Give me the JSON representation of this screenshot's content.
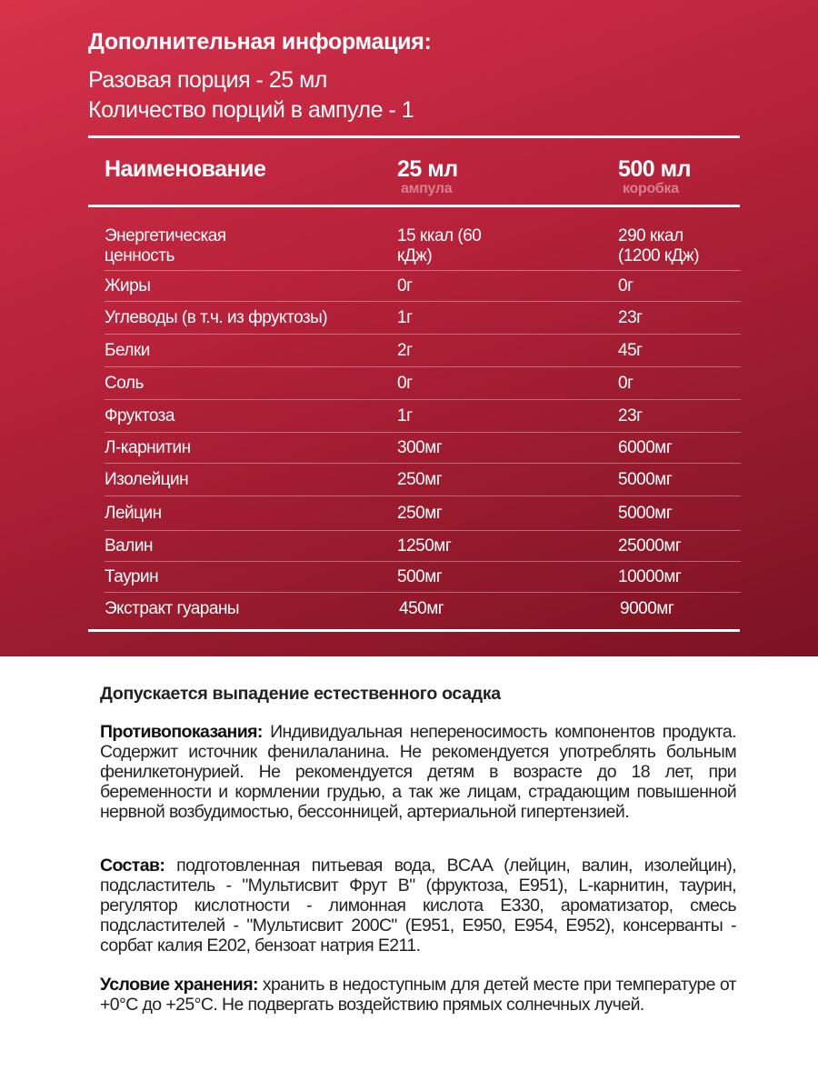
{
  "info": {
    "title": "Дополнительная информация:",
    "serving": "Разовая порция - 25 мл",
    "servings_count": "Количество порций в ампуле - 1"
  },
  "table": {
    "headers": {
      "name": "Наименование",
      "col1": "25 мл",
      "col1_sub": "ампула",
      "col2": "500 мл",
      "col2_sub": "коробка"
    },
    "rows": [
      {
        "name": "Энергетическая ценность",
        "v1": "15 ккал (60 кДж)",
        "v2": "290 ккал (1200 кДж)"
      },
      {
        "name": "Жиры",
        "v1": "0г",
        "v2": "0г"
      },
      {
        "name": "Углеводы (в т.ч. из фруктозы)",
        "v1": "1г",
        "v2": "23г"
      },
      {
        "name": "Белки",
        "v1": "2г",
        "v2": "45г"
      },
      {
        "name": "Соль",
        "v1": "0г",
        "v2": "0г"
      },
      {
        "name": "Фруктоза",
        "v1": "1г",
        "v2": "23г"
      },
      {
        "name": "Л-карнитин",
        "v1": "300мг",
        "v2": "6000мг"
      },
      {
        "name": "Изолейцин",
        "v1": "250мг",
        "v2": "5000мг"
      },
      {
        "name": "Лейцин",
        "v1": "250мг",
        "v2": "5000мг"
      },
      {
        "name": "Валин",
        "v1": "1250мг",
        "v2": "25000мг"
      },
      {
        "name": "Таурин",
        "v1": "500мг",
        "v2": "10000мг"
      },
      {
        "name": "Экстракт гуараны",
        "v1": "450мг",
        "v2": "9000мг"
      }
    ]
  },
  "notes": {
    "sediment": "Допускается выпадение естественного осадка",
    "contra_label": "Противопоказания:",
    "contra_text": " Индивидуальная непереносимость компонентов продукта. Содержит источник фенилаланина. Не рекомендуется употреблять больным фенилкетонурией. Не рекомендуется детям в возрасте до 18 лет, при беременности и кормлении грудью, а так же лицам, страдающим повышенной нервной возбудимостью, бессонницей, артериальной гипертензией.",
    "composition_label": "Состав:",
    "composition_text": " подготовленная питьевая вода, BCAA (лейцин, валин, изолейцин), подсластитель - \"Мультисвит Фрут B\" (фруктоза, E951), L-карнитин, таурин, регулятор кислотности - лимонная кислота E330, ароматизатор, смесь подсластителей - \"Мультисвит 200С\" (E951, E950, E954, E952), консерванты - сорбат калия E202, бензоат натрия E211.",
    "storage_label": "Условие хранения:",
    "storage_text": " хранить в недоступным для детей месте при температуре от +0°C до +25°C. Не подвергать воздействию прямых солнечных лучей."
  }
}
